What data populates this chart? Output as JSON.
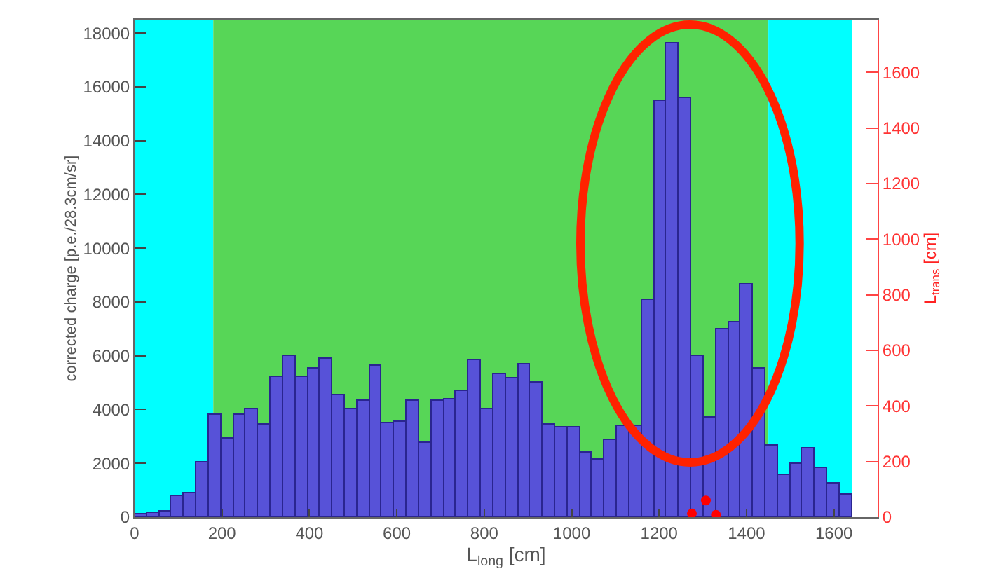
{
  "chart_data": {
    "type": "histogram",
    "xlabel": "L$_{long}$ [cm]",
    "ylabel": "corrected charge [p.e./28.3cm/sr]",
    "y2label": "L$_{trans}$ [cm]",
    "bins": [
      0,
      28.3,
      56.6,
      84.9,
      113.2,
      141.5,
      169.8,
      198.1,
      226.4,
      254.7,
      283,
      311.3,
      339.6,
      367.9,
      396.2,
      424.5,
      452.8,
      481.1,
      509.4,
      537.7,
      566,
      594.3,
      622.6,
      650.9,
      679.2,
      707.5,
      735.8,
      764.1,
      792.4,
      820.7,
      849,
      877.3,
      905.6,
      933.9,
      962.2,
      990.5,
      1018.8,
      1047.1,
      1075.4,
      1103.7,
      1132,
      1160.3,
      1188.6,
      1216.9,
      1245.2,
      1273.5,
      1301.8,
      1330.1,
      1358.4,
      1386.7,
      1415,
      1443.3,
      1471.6,
      1499.9,
      1528.2,
      1556.5,
      1584.8,
      1613.1,
      1641.4
    ],
    "series": [
      {
        "color": "#5752d8",
        "values": [
          100,
          150,
          200,
          780,
          880,
          2030,
          3800,
          2900,
          3800,
          4000,
          3450,
          5200,
          6000,
          5200,
          5500,
          5900,
          4550,
          4000,
          4300,
          5650,
          3500,
          3550,
          4300,
          2750,
          4300,
          4400,
          4700,
          5850,
          4000,
          5300,
          5150,
          5700,
          5000,
          3450,
          3350,
          3350,
          2400,
          2150,
          2850,
          3400,
          3400,
          8100,
          15500,
          17600,
          15600,
          6000,
          3700,
          7000,
          7250,
          8650,
          5500,
          2650,
          1560,
          2000,
          2550,
          1850,
          1250,
          830
        ]
      },
      {
        "type": "scatter",
        "axis": "y2",
        "color": "#ff0000",
        "x": [
          1275,
          1307,
          1330
        ],
        "values": [
          13,
          60,
          8
        ]
      }
    ],
    "marker": "circle",
    "xlim": [
      0,
      1700
    ],
    "xticks": [
      0,
      200,
      400,
      600,
      800,
      1000,
      1200,
      1400,
      1600
    ],
    "ylim": [
      0,
      18500
    ],
    "yticks": [
      0,
      2000,
      4000,
      6000,
      8000,
      10000,
      12000,
      14000,
      16000,
      18000
    ],
    "y2lim": [
      0,
      1790
    ],
    "y2ticks": [
      0,
      200,
      400,
      600,
      800,
      1000,
      1200,
      1400,
      1600
    ],
    "bands": [
      {
        "axis": "x",
        "from": 0,
        "to": 180,
        "color": "#00ffff"
      },
      {
        "axis": "x",
        "from": 180,
        "to": 1450,
        "color": "#57d657"
      },
      {
        "axis": "x",
        "from": 1450,
        "to": 1641.4,
        "color": "#00ffff"
      }
    ]
  }
}
